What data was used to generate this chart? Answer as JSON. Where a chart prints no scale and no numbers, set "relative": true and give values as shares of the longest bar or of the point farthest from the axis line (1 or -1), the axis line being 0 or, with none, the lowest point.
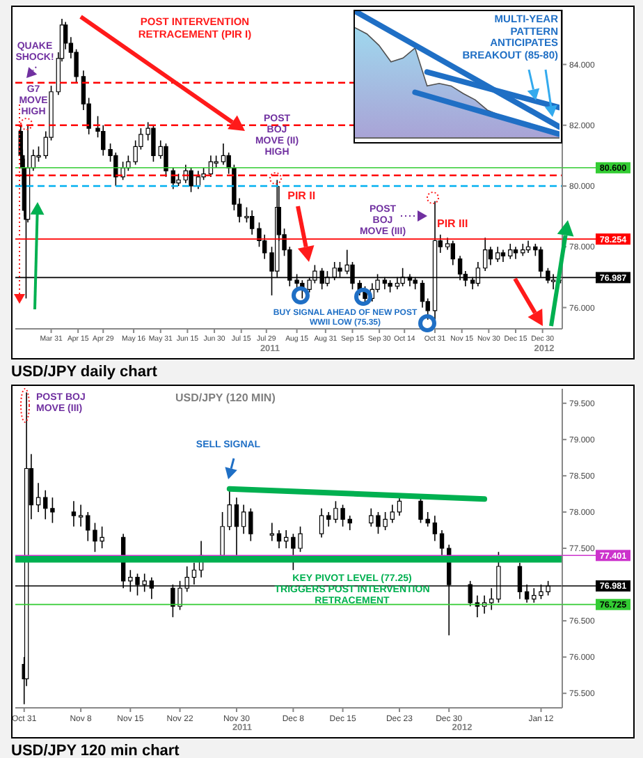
{
  "chart_data": [
    {
      "type": "candlestick",
      "series": [
        {
          "type": "candlestick",
          "color": "#000000",
          "x": [
            "2011-03-14",
            "2011-03-15",
            "2011-03-16",
            "2011-03-17",
            "2011-03-18",
            "2011-03-21",
            "2011-03-24",
            "2011-03-28",
            "2011-03-31",
            "2011-04-04",
            "2011-04-06",
            "2011-04-08",
            "2011-04-11",
            "2011-04-14",
            "2011-04-18",
            "2011-04-21",
            "2011-04-26",
            "2011-04-29",
            "2011-05-03",
            "2011-05-06",
            "2011-05-10",
            "2011-05-13",
            "2011-05-17",
            "2011-05-20",
            "2011-05-24",
            "2011-05-27",
            "2011-05-31",
            "2011-06-03",
            "2011-06-07",
            "2011-06-10",
            "2011-06-14",
            "2011-06-17",
            "2011-06-21",
            "2011-06-24",
            "2011-06-28",
            "2011-07-01",
            "2011-07-05",
            "2011-07-08",
            "2011-07-11",
            "2011-07-14",
            "2011-07-18",
            "2011-07-21",
            "2011-07-25",
            "2011-07-28",
            "2011-08-01",
            "2011-08-04",
            "2011-08-05",
            "2011-08-08",
            "2011-08-11",
            "2011-08-15",
            "2011-08-18",
            "2011-08-22",
            "2011-08-25",
            "2011-08-29",
            "2011-09-01",
            "2011-09-05",
            "2011-09-08",
            "2011-09-12",
            "2011-09-15",
            "2011-09-19",
            "2011-09-22",
            "2011-09-26",
            "2011-09-29",
            "2011-10-03",
            "2011-10-06",
            "2011-10-10",
            "2011-10-13",
            "2011-10-17",
            "2011-10-20",
            "2011-10-24",
            "2011-10-27",
            "2011-10-31",
            "2011-11-03",
            "2011-11-07",
            "2011-11-10",
            "2011-11-14",
            "2011-11-17",
            "2011-11-21",
            "2011-11-24",
            "2011-11-28",
            "2011-12-01",
            "2011-12-05",
            "2011-12-08",
            "2011-12-12",
            "2011-12-15",
            "2011-12-19",
            "2011-12-22",
            "2011-12-26",
            "2011-12-29",
            "2012-01-02",
            "2012-01-05",
            "2012-01-09"
          ],
          "ohlc": [
            [
              81.8,
              82.0,
              80.6,
              81.0
            ],
            [
              81.0,
              81.2,
              80.0,
              80.6
            ],
            [
              80.6,
              80.9,
              79.0,
              79.2
            ],
            [
              79.2,
              79.5,
              76.3,
              78.9
            ],
            [
              78.9,
              82.0,
              78.8,
              80.6
            ],
            [
              80.6,
              81.2,
              80.5,
              81.0
            ],
            [
              81.0,
              81.3,
              80.8,
              81.0
            ],
            [
              81.0,
              81.8,
              80.9,
              81.6
            ],
            [
              81.6,
              83.3,
              81.5,
              83.1
            ],
            [
              83.1,
              84.4,
              83.0,
              84.2
            ],
            [
              84.2,
              85.5,
              84.1,
              85.3
            ],
            [
              85.3,
              85.4,
              84.5,
              84.7
            ],
            [
              84.7,
              84.9,
              84.2,
              84.4
            ],
            [
              84.4,
              84.5,
              83.4,
              83.6
            ],
            [
              83.6,
              83.8,
              82.5,
              82.7
            ],
            [
              82.7,
              82.9,
              81.7,
              81.9
            ],
            [
              81.9,
              82.3,
              81.6,
              81.8
            ],
            [
              81.8,
              82.0,
              81.0,
              81.2
            ],
            [
              81.2,
              81.4,
              80.8,
              81.0
            ],
            [
              81.0,
              81.1,
              80.0,
              80.3
            ],
            [
              80.3,
              80.8,
              80.2,
              80.6
            ],
            [
              80.6,
              81.0,
              80.5,
              80.8
            ],
            [
              80.8,
              81.5,
              80.7,
              81.3
            ],
            [
              81.3,
              81.9,
              81.2,
              81.7
            ],
            [
              81.7,
              82.1,
              81.5,
              81.9
            ],
            [
              81.9,
              82.0,
              80.8,
              81.0
            ],
            [
              81.0,
              81.5,
              80.9,
              81.3
            ],
            [
              81.3,
              81.4,
              80.3,
              80.5
            ],
            [
              80.5,
              80.6,
              79.9,
              80.1
            ],
            [
              80.1,
              80.4,
              80.0,
              80.2
            ],
            [
              80.2,
              80.7,
              80.1,
              80.5
            ],
            [
              80.5,
              80.6,
              79.8,
              80.0
            ],
            [
              80.0,
              80.5,
              79.9,
              80.3
            ],
            [
              80.3,
              80.6,
              80.2,
              80.4
            ],
            [
              80.4,
              81.0,
              80.3,
              80.8
            ],
            [
              80.8,
              81.0,
              80.6,
              80.8
            ],
            [
              80.8,
              81.4,
              80.7,
              81.0
            ],
            [
              81.0,
              81.1,
              80.4,
              80.6
            ],
            [
              80.6,
              80.7,
              79.2,
              79.4
            ],
            [
              79.4,
              79.6,
              78.8,
              79.0
            ],
            [
              79.0,
              79.3,
              78.8,
              79.0
            ],
            [
              79.0,
              79.2,
              78.4,
              78.6
            ],
            [
              78.6,
              78.8,
              78.0,
              78.2
            ],
            [
              78.2,
              78.4,
              77.6,
              77.8
            ],
            [
              77.8,
              78.0,
              76.4,
              77.2
            ],
            [
              77.2,
              80.2,
              77.0,
              79.3
            ],
            [
              79.3,
              80.0,
              78.2,
              78.4
            ],
            [
              78.4,
              78.6,
              77.7,
              77.9
            ],
            [
              77.9,
              78.0,
              76.7,
              76.9
            ],
            [
              76.9,
              77.1,
              76.6,
              76.8
            ],
            [
              76.8,
              76.9,
              76.3,
              76.6
            ],
            [
              76.6,
              77.0,
              76.5,
              76.9
            ],
            [
              76.9,
              77.4,
              76.8,
              77.2
            ],
            [
              77.2,
              77.3,
              76.6,
              76.8
            ],
            [
              76.8,
              77.2,
              76.7,
              77.0
            ],
            [
              77.0,
              77.5,
              76.9,
              77.3
            ],
            [
              77.3,
              77.5,
              77.0,
              77.2
            ],
            [
              77.2,
              77.9,
              77.1,
              77.4
            ],
            [
              77.4,
              77.5,
              76.6,
              76.8
            ],
            [
              76.8,
              76.9,
              76.4,
              76.6
            ],
            [
              76.6,
              76.7,
              76.1,
              76.3
            ],
            [
              76.3,
              76.8,
              76.2,
              76.6
            ],
            [
              76.6,
              77.1,
              76.5,
              76.9
            ],
            [
              76.9,
              77.0,
              76.6,
              76.8
            ],
            [
              76.8,
              76.9,
              76.5,
              76.7
            ],
            [
              76.7,
              77.0,
              76.6,
              76.8
            ],
            [
              76.8,
              77.3,
              76.7,
              77.0
            ],
            [
              77.0,
              77.1,
              76.7,
              76.9
            ],
            [
              76.9,
              77.0,
              76.6,
              76.8
            ],
            [
              76.8,
              76.9,
              76.0,
              76.2
            ],
            [
              76.2,
              76.3,
              75.6,
              75.9
            ],
            [
              75.9,
              79.5,
              75.6,
              78.2
            ],
            [
              78.2,
              78.4,
              77.8,
              78.0
            ],
            [
              78.0,
              78.3,
              77.9,
              78.1
            ],
            [
              78.1,
              78.2,
              77.4,
              77.6
            ],
            [
              77.6,
              77.7,
              76.9,
              77.1
            ],
            [
              77.1,
              77.2,
              76.7,
              76.9
            ],
            [
              76.9,
              77.0,
              76.6,
              76.8
            ],
            [
              76.8,
              77.5,
              76.7,
              77.3
            ],
            [
              77.3,
              78.3,
              77.2,
              77.9
            ],
            [
              77.9,
              78.0,
              77.4,
              77.6
            ],
            [
              77.6,
              78.0,
              77.5,
              77.8
            ],
            [
              77.8,
              77.9,
              77.5,
              77.7
            ],
            [
              77.7,
              78.1,
              77.6,
              77.9
            ],
            [
              77.9,
              78.0,
              77.6,
              77.8
            ],
            [
              77.8,
              78.1,
              77.7,
              77.9
            ],
            [
              77.9,
              78.2,
              77.8,
              78.0
            ],
            [
              78.0,
              78.1,
              77.7,
              77.9
            ],
            [
              77.9,
              78.0,
              77.0,
              77.2
            ],
            [
              77.2,
              77.3,
              76.8,
              76.9
            ],
            [
              76.9,
              77.1,
              76.6,
              76.9
            ],
            [
              76.9,
              77.1,
              76.8,
              76.99
            ]
          ]
        }
      ],
      "xlim": [
        "2011-03-11",
        "2012-01-10"
      ],
      "ylim": [
        75.3,
        85.8
      ],
      "xticks": [
        {
          "value": "2011-03-31",
          "label": "Mar 31"
        },
        {
          "value": "2011-04-15",
          "label": "Apr 15"
        },
        {
          "value": "2011-04-29",
          "label": "Apr 29"
        },
        {
          "value": "2011-05-16",
          "label": "May 16"
        },
        {
          "value": "2011-05-31",
          "label": "May 31"
        },
        {
          "value": "2011-06-15",
          "label": "Jun 15"
        },
        {
          "value": "2011-06-30",
          "label": "Jun 30"
        },
        {
          "value": "2011-07-15",
          "label": "Jul 15"
        },
        {
          "value": "2011-07-29",
          "label": "Jul 29"
        },
        {
          "value": "2011-08-15",
          "label": "Aug 15"
        },
        {
          "value": "2011-08-31",
          "label": "Aug 31"
        },
        {
          "value": "2011-09-15",
          "label": "Sep 15"
        },
        {
          "value": "2011-09-30",
          "label": "Sep 30"
        },
        {
          "value": "2011-10-14",
          "label": "Oct 14"
        },
        {
          "value": "2011-10-31",
          "label": "Oct 31"
        },
        {
          "value": "2011-11-15",
          "label": "Nov 15"
        },
        {
          "value": "2011-11-30",
          "label": "Nov 30"
        },
        {
          "value": "2011-12-15",
          "label": "Dec 15"
        },
        {
          "value": "2011-12-30",
          "label": "Dec 30"
        }
      ],
      "yticks": [
        {
          "value": 76,
          "label": "76.000"
        },
        {
          "value": 78,
          "label": "78.000"
        },
        {
          "value": 80,
          "label": "80.000"
        },
        {
          "value": 82,
          "label": "82.000"
        },
        {
          "value": 84,
          "label": "84.000"
        }
      ],
      "ref_lines": [
        {
          "axis": "y",
          "value": 83.4,
          "color": "#ff0000",
          "line_style": "dashed"
        },
        {
          "axis": "y",
          "value": 82.0,
          "color": "#ff0000",
          "line_style": "dashed"
        },
        {
          "axis": "y",
          "value": 80.35,
          "color": "#ff0000",
          "line_style": "dashed"
        },
        {
          "axis": "y",
          "value": 80.0,
          "color": "#00b0f0",
          "line_style": "dashed"
        },
        {
          "axis": "y",
          "value": 80.6,
          "label": "80.600",
          "color": "#33cc33"
        },
        {
          "axis": "y",
          "value": 78.254,
          "label": "78.254",
          "color": "#ff0000"
        },
        {
          "axis": "y",
          "value": 76.987,
          "label": "76.987",
          "color": "#000000"
        }
      ],
      "annotations": [
        "POST INTERVENTION RETRACEMENT (PIR I)",
        "QUAKE SHOCK!",
        "G7 MOVE HIGH",
        "POST BOJ MOVE (II) HIGH",
        {
          "text": "PIR II",
          "x": "2011-08-04",
          "y": 80.2
        },
        "POST BOJ MOVE (III)",
        "PIR III",
        "BUY SIGNAL AHEAD OF NEW POST WWII LOW (75.35)",
        "2011",
        "2012",
        "USD/JPY daily chart"
      ]
    },
    {
      "type": "area",
      "relative": true,
      "categories": [
        null,
        null,
        null,
        null,
        null,
        null,
        null,
        null,
        null,
        null,
        null,
        null,
        null,
        null,
        null,
        null,
        null,
        null
      ],
      "series": [
        {
          "color": "#9fd8ee",
          "values": [
            0.87,
            0.82,
            0.73,
            0.6,
            0.63,
            0.71,
            0.41,
            0.43,
            0.41,
            0.35,
            0.3,
            0.22,
            0.18,
            0.13,
            0.11,
            0.1,
            0.07,
            0.04
          ]
        },
        {
          "type": "line",
          "color": "#1f6fc5",
          "values": [
            1,
            null,
            null,
            null,
            null,
            null,
            null,
            null,
            null,
            null,
            null,
            null,
            null,
            null,
            null,
            null,
            null,
            0.087
          ]
        },
        {
          "type": "line",
          "color": "#1f6fc5",
          "values": [
            null,
            null,
            null,
            null,
            null,
            null,
            0.52,
            null,
            null,
            null,
            null,
            null,
            null,
            null,
            null,
            null,
            null,
            0.24
          ]
        },
        {
          "type": "line",
          "color": "#1f6fc5",
          "values": [
            null,
            null,
            null,
            null,
            null,
            0.36,
            null,
            null,
            null,
            null,
            null,
            null,
            null,
            null,
            null,
            null,
            null,
            0.03
          ]
        }
      ],
      "annotations": [
        "MULTI-YEAR PATTERN ANTICIPATES BREAKOUT (85-80)"
      ]
    },
    {
      "type": "candlestick",
      "title": "USD/JPY (120 MIN)",
      "series": [
        {
          "type": "candlestick",
          "color": "#000000",
          "x": [
            "2011-10-31T00:00",
            "2011-10-31T08:00",
            "2011-11-01",
            "2011-11-02",
            "2011-11-03",
            "2011-11-04",
            "2011-11-07",
            "2011-11-08",
            "2011-11-09",
            "2011-11-10",
            "2011-11-11",
            "2011-11-14",
            "2011-11-15",
            "2011-11-16",
            "2011-11-17",
            "2011-11-18",
            "2011-11-21",
            "2011-11-22",
            "2011-11-23",
            "2011-11-24",
            "2011-11-25",
            "2011-11-28",
            "2011-11-29",
            "2011-11-30",
            "2011-12-01",
            "2011-12-02",
            "2011-12-05",
            "2011-12-06",
            "2011-12-07",
            "2011-12-08",
            "2011-12-09",
            "2011-12-12",
            "2011-12-13",
            "2011-12-14",
            "2011-12-15",
            "2011-12-16",
            "2011-12-19",
            "2011-12-20",
            "2011-12-21",
            "2011-12-22",
            "2011-12-23",
            "2011-12-26",
            "2011-12-27",
            "2011-12-28",
            "2011-12-29",
            "2011-12-30",
            "2012-01-02",
            "2012-01-03",
            "2012-01-04",
            "2012-01-05",
            "2012-01-06",
            "2012-01-09",
            "2012-01-10",
            "2012-01-11",
            "2012-01-12",
            "2012-01-13"
          ],
          "ohlc": [
            [
              75.9,
              76.0,
              75.35,
              75.7
            ],
            [
              75.7,
              79.65,
              75.6,
              78.6
            ],
            [
              78.6,
              78.8,
              77.9,
              78.1
            ],
            [
              78.1,
              78.4,
              78.0,
              78.2
            ],
            [
              78.2,
              78.3,
              77.9,
              78.05
            ],
            [
              78.05,
              78.2,
              77.85,
              78.0
            ],
            [
              78.0,
              78.15,
              77.8,
              77.95
            ],
            [
              77.95,
              78.1,
              77.8,
              77.95
            ],
            [
              77.95,
              78.0,
              77.6,
              77.75
            ],
            [
              77.75,
              77.85,
              77.45,
              77.6
            ],
            [
              77.6,
              77.8,
              77.5,
              77.65
            ],
            [
              77.65,
              77.7,
              76.95,
              77.05
            ],
            [
              77.05,
              77.2,
              76.9,
              77.1
            ],
            [
              77.1,
              77.15,
              76.85,
              77.0
            ],
            [
              77.0,
              77.15,
              76.9,
              77.05
            ],
            [
              77.05,
              77.1,
              76.8,
              76.95
            ],
            [
              76.95,
              77.0,
              76.55,
              76.7
            ],
            [
              76.7,
              77.05,
              76.65,
              76.95
            ],
            [
              76.95,
              77.25,
              76.9,
              77.1
            ],
            [
              77.1,
              77.3,
              77.0,
              77.2
            ],
            [
              77.2,
              77.6,
              77.1,
              77.4
            ],
            [
              77.4,
              78.0,
              77.35,
              77.8
            ],
            [
              77.8,
              78.3,
              77.75,
              78.1
            ],
            [
              78.1,
              78.2,
              77.35,
              77.8
            ],
            [
              77.8,
              78.1,
              77.7,
              78.0
            ],
            [
              78.0,
              78.05,
              77.6,
              77.7
            ],
            [
              77.7,
              77.85,
              77.6,
              77.7
            ],
            [
              77.7,
              77.75,
              77.5,
              77.6
            ],
            [
              77.6,
              77.75,
              77.5,
              77.65
            ],
            [
              77.65,
              77.7,
              77.2,
              77.5
            ],
            [
              77.5,
              77.8,
              77.45,
              77.7
            ],
            [
              77.7,
              78.05,
              77.65,
              77.95
            ],
            [
              77.95,
              78.0,
              77.8,
              77.9
            ],
            [
              77.9,
              78.15,
              77.85,
              78.05
            ],
            [
              78.05,
              78.1,
              77.8,
              77.9
            ],
            [
              77.9,
              77.95,
              77.75,
              77.85
            ],
            [
              77.85,
              78.05,
              77.8,
              77.95
            ],
            [
              77.95,
              78.0,
              77.7,
              77.8
            ],
            [
              77.8,
              78.0,
              77.75,
              77.9
            ],
            [
              77.9,
              78.1,
              77.85,
              78.0
            ],
            [
              78.0,
              78.2,
              77.95,
              78.15
            ],
            [
              78.15,
              78.2,
              77.85,
              77.9
            ],
            [
              77.9,
              78.0,
              77.8,
              77.85
            ],
            [
              77.85,
              77.95,
              77.6,
              77.7
            ],
            [
              77.7,
              77.75,
              77.35,
              77.5
            ],
            [
              77.5,
              77.55,
              76.3,
              77.0
            ],
            [
              77.0,
              77.05,
              76.7,
              76.75
            ],
            [
              76.75,
              76.85,
              76.55,
              76.7
            ],
            [
              76.7,
              76.85,
              76.6,
              76.75
            ],
            [
              76.75,
              76.95,
              76.65,
              76.8
            ],
            [
              76.8,
              77.45,
              76.75,
              77.25
            ],
            [
              77.25,
              77.3,
              76.8,
              76.9
            ],
            [
              76.9,
              77.0,
              76.75,
              76.8
            ],
            [
              76.8,
              76.95,
              76.75,
              76.85
            ],
            [
              76.85,
              77.0,
              76.8,
              76.9
            ],
            [
              76.9,
              77.05,
              76.85,
              76.98
            ]
          ]
        },
        {
          "type": "line",
          "color": "#00b050",
          "x": [
            "2011-11-29",
            "2012-01-04"
          ],
          "values": [
            78.32,
            78.18
          ]
        }
      ],
      "xlim": [
        "2011-10-29T18:00",
        "2012-01-15"
      ],
      "ylim": [
        75.3,
        79.7
      ],
      "xticks": [
        {
          "value": "2011-10-31",
          "label": "Oct 31"
        },
        {
          "value": "2011-11-08",
          "label": "Nov 8"
        },
        {
          "value": "2011-11-15",
          "label": "Nov 15"
        },
        {
          "value": "2011-11-22",
          "label": "Nov 22"
        },
        {
          "value": "2011-11-30",
          "label": "Nov 30"
        },
        {
          "value": "2011-12-08",
          "label": "Dec 8"
        },
        {
          "value": "2011-12-15",
          "label": "Dec 15"
        },
        {
          "value": "2011-12-23",
          "label": "Dec 23"
        },
        {
          "value": "2011-12-30",
          "label": "Dec 30"
        },
        {
          "value": "2012-01-12",
          "label": "Jan 12"
        }
      ],
      "yticks": [
        {
          "value": 75.5,
          "label": "75.500"
        },
        {
          "value": 76,
          "label": "76.000"
        },
        {
          "value": 76.5,
          "label": "76.500"
        },
        {
          "value": 77.5,
          "label": "77.500"
        },
        {
          "value": 78,
          "label": "78.000"
        },
        {
          "value": 78.5,
          "label": "78.500"
        },
        {
          "value": 79,
          "label": "79.000"
        },
        {
          "value": 79.5,
          "label": "79.500"
        }
      ],
      "ref_lines": [
        {
          "axis": "y",
          "value": 77.35,
          "color": "#00b050"
        },
        {
          "axis": "y",
          "value": 77.401,
          "label": "77.401",
          "color": "#cc33cc"
        },
        {
          "axis": "y",
          "value": 76.981,
          "label": "76.981",
          "color": "#000000"
        },
        {
          "axis": "y",
          "value": 76.725,
          "label": "76.725",
          "color": "#33cc33"
        }
      ],
      "annotations": [
        "POST BOJ MOVE (III)",
        "SELL SIGNAL",
        "KEY PIVOT LEVEL (77.25) TRIGGERS POST INTERVENTION RETRACEMENT",
        "2011",
        "2012",
        "USD/JPY 120 min chart"
      ]
    }
  ]
}
